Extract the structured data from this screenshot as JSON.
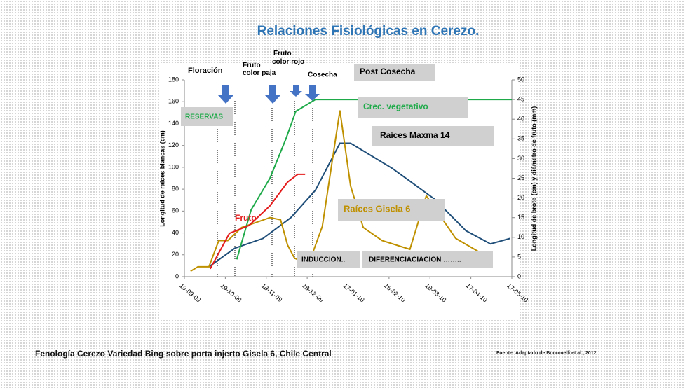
{
  "header": {
    "title": "Relaciones Fisiológicas en Cerezo."
  },
  "chart_data": {
    "type": "line",
    "ylabel": "Longitud de raíces blancas (cm)",
    "y2label": "Longitud de brote (cm) y diámetro de fruto (mm)",
    "xlim": [
      0,
      8
    ],
    "xticks": [
      {
        "value": 0,
        "label": "19-09-09"
      },
      {
        "value": 1,
        "label": "19-10-09"
      },
      {
        "value": 2,
        "label": "18-11-09"
      },
      {
        "value": 3,
        "label": "18-12-09"
      },
      {
        "value": 4,
        "label": "17-01-10"
      },
      {
        "value": 5,
        "label": "16-02-10"
      },
      {
        "value": 6,
        "label": "18-03-10"
      },
      {
        "value": 7,
        "label": "17-04-10"
      },
      {
        "value": 8,
        "label": "17-05-10"
      }
    ],
    "ylim": [
      0,
      180
    ],
    "yticks": [
      0,
      20,
      40,
      60,
      80,
      100,
      120,
      140,
      160,
      180
    ],
    "y2lim": [
      0,
      50
    ],
    "y2ticks": [
      0,
      5,
      10,
      15,
      20,
      25,
      30,
      35,
      40,
      45,
      50
    ],
    "series": [
      {
        "name": "Raíces Maxma 14",
        "color": "#1f4e79",
        "x": [
          0.6,
          1.23,
          1.92,
          2.6,
          3.2,
          3.8,
          4.06,
          5.08,
          6.11,
          6.88,
          7.48,
          7.96
        ],
        "values": [
          9,
          26,
          35,
          54,
          79,
          122,
          122,
          99,
          71,
          42,
          30,
          35
        ]
      },
      {
        "name": "Raíces Gisela 6",
        "color": "#bf9000",
        "x": [
          0.15,
          0.33,
          0.6,
          0.84,
          1.06,
          1.4,
          2.09,
          2.35,
          2.52,
          2.69,
          3.03,
          3.37,
          3.8,
          4.06,
          4.37,
          4.83,
          5.51,
          5.91,
          6.63,
          7.23
        ],
        "values": [
          5,
          9,
          9,
          33,
          33,
          45,
          54,
          52,
          29,
          17,
          11,
          46,
          152,
          83,
          45,
          33,
          25,
          74,
          35,
          22
        ]
      },
      {
        "name": "Crec. vegetativo",
        "color": "#1faa4a",
        "axis": "y2",
        "x": [
          1.28,
          1.63,
          2.09,
          2.48,
          2.72,
          3.2,
          3.72,
          8
        ],
        "values": [
          4.4,
          17,
          25,
          35,
          42,
          45,
          45,
          45
        ]
      },
      {
        "name": "Fruto",
        "color": "#e41b1b",
        "axis": "y2",
        "x": [
          0.63,
          1.1,
          1.58,
          2.09,
          2.52,
          2.77,
          2.95
        ],
        "values": [
          2,
          11,
          13,
          18,
          24,
          26,
          26
        ]
      }
    ],
    "annotations": [
      "Floración",
      "Fruto color paja",
      "Fruto color rojo",
      "Cosecha",
      "Post Cosecha",
      "RESERVAS",
      "INDUCCION..",
      "DIFERENCIACIACION …….."
    ]
  },
  "footer": {
    "caption": "Fenología Cerezo Variedad Bing sobre porta injerto Gisela 6, Chile Central",
    "source": "Fuente: Adaptado de Bonomelli et al., 2012"
  }
}
